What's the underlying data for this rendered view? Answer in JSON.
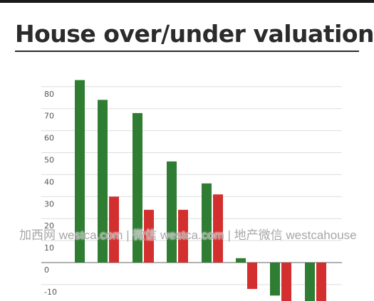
{
  "page": {
    "title": "House over/under valuations",
    "watermark": "加西网 westca.com | 微信 westca.com | 地产微信 westcahouse"
  },
  "colors": {
    "green": "#2e7d32",
    "red": "#d32f2f",
    "grid": "#dddddd",
    "zero": "#999999",
    "tick": "#555555"
  },
  "chart_data": {
    "type": "bar",
    "title": "House over/under valuations",
    "xlabel": "",
    "ylabel": "",
    "ylim": [
      -14,
      88
    ],
    "yticks": [
      -10,
      0,
      10,
      20,
      30,
      40,
      50,
      60,
      70,
      80
    ],
    "grid": true,
    "categories": [
      "",
      "",
      "",
      "",
      "",
      "",
      "",
      ""
    ],
    "series": [
      {
        "values": [
          83,
          74,
          68,
          46,
          36,
          2,
          -15,
          -18
        ]
      },
      {
        "values": [
          null,
          30,
          24,
          24,
          31,
          -12,
          -18,
          -18
        ]
      }
    ]
  }
}
